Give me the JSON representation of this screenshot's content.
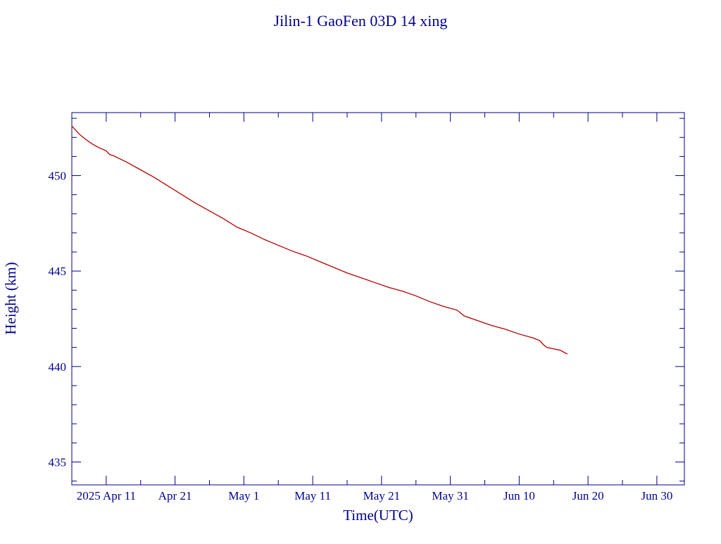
{
  "chart_data": {
    "type": "line",
    "title": "Jilin-1 GaoFen 03D 14 xing",
    "xlabel": "Time(UTC)",
    "ylabel": "Height (km)",
    "xlim": [
      "2025-04-06",
      "2025-07-04"
    ],
    "ylim": [
      433.8,
      453.3
    ],
    "x_ticks": [
      {
        "date": "2025-04-11",
        "label": "2025 Apr 11"
      },
      {
        "date": "2025-04-21",
        "label": "Apr 21"
      },
      {
        "date": "2025-05-01",
        "label": "May  1"
      },
      {
        "date": "2025-05-11",
        "label": "May 11"
      },
      {
        "date": "2025-05-21",
        "label": "May 21"
      },
      {
        "date": "2025-05-31",
        "label": "May 31"
      },
      {
        "date": "2025-06-10",
        "label": "Jun 10"
      },
      {
        "date": "2025-06-20",
        "label": "Jun 20"
      },
      {
        "date": "2025-06-30",
        "label": "Jun 30"
      }
    ],
    "x_minor_step_days": 5,
    "y_ticks": [
      435,
      440,
      445,
      450
    ],
    "y_minor_step": 1,
    "grid": false,
    "line_color": "#b20000",
    "axis_color": "#00008b",
    "series": [
      {
        "x": [
          "2025-04-06",
          "2025-04-07",
          "2025-04-08",
          "2025-04-09",
          "2025-04-10",
          "2025-04-11",
          "2025-04-11T06:00",
          "2025-04-11T12:00",
          "2025-04-12",
          "2025-04-14",
          "2025-04-16",
          "2025-04-18",
          "2025-04-20",
          "2025-04-22",
          "2025-04-24",
          "2025-04-26",
          "2025-04-28",
          "2025-04-30",
          "2025-05-02",
          "2025-05-04",
          "2025-05-06",
          "2025-05-08",
          "2025-05-10",
          "2025-05-12",
          "2025-05-14",
          "2025-05-16",
          "2025-05-18",
          "2025-05-20",
          "2025-05-22",
          "2025-05-24",
          "2025-05-26",
          "2025-05-28",
          "2025-05-30",
          "2025-06-01",
          "2025-06-01T12:00",
          "2025-06-02",
          "2025-06-04",
          "2025-06-06",
          "2025-06-08",
          "2025-06-10",
          "2025-06-12",
          "2025-06-13",
          "2025-06-13T12:00",
          "2025-06-14",
          "2025-06-16",
          "2025-06-17"
        ],
        "y": [
          452.6,
          452.2,
          451.9,
          451.65,
          451.45,
          451.3,
          451.2,
          451.1,
          451.05,
          450.7,
          450.3,
          449.9,
          449.45,
          449.0,
          448.55,
          448.15,
          447.75,
          447.3,
          447.0,
          446.65,
          446.35,
          446.05,
          445.8,
          445.5,
          445.2,
          444.9,
          444.65,
          444.4,
          444.15,
          443.95,
          443.7,
          443.4,
          443.15,
          442.95,
          442.8,
          442.65,
          442.4,
          442.15,
          441.95,
          441.7,
          441.5,
          441.35,
          441.15,
          441.0,
          440.85,
          440.65
        ]
      }
    ]
  }
}
